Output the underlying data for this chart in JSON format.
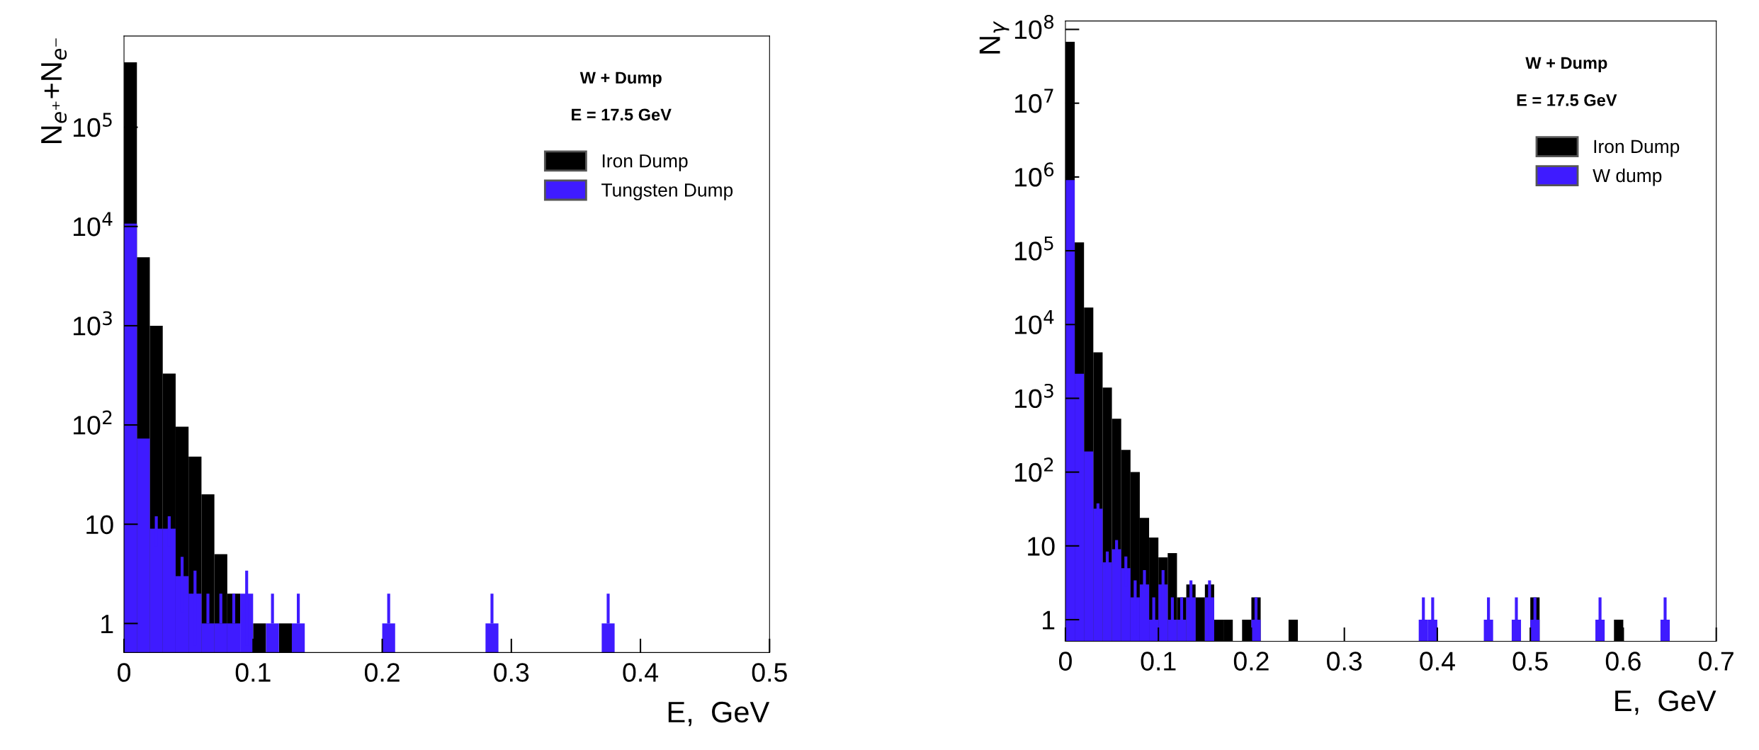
{
  "chart_data": [
    {
      "type": "histogram",
      "ylabel": "N$_{e⁺}$+N$_{e⁻}$",
      "xlabel": "E,  GeV",
      "annotations": [
        "W + Dump",
        "E = 17.5 GeV"
      ],
      "log": "y",
      "legend": "top right",
      "bins": [
        0,
        0.01,
        0.02,
        0.03,
        0.04,
        0.05,
        0.06,
        0.07,
        0.08,
        0.09,
        0.1,
        0.11,
        0.12,
        0.13,
        0.14,
        0.15,
        0.16,
        0.17,
        0.18,
        0.19,
        0.2,
        0.21,
        0.22,
        0.23,
        0.24,
        0.25,
        0.26,
        0.27,
        0.28,
        0.29,
        0.3,
        0.31,
        0.32,
        0.33,
        0.34,
        0.35,
        0.36,
        0.37,
        0.38,
        0.39,
        0.4,
        0.41,
        0.42,
        0.43,
        0.44,
        0.45,
        0.46,
        0.47,
        0.48,
        0.49,
        0.5
      ],
      "series": [
        {
          "name": "Iron Dump",
          "color": "#000000",
          "values": [
            450000,
            4900,
            1000,
            330,
            96,
            48,
            20,
            5,
            2,
            null,
            1,
            null,
            1,
            null,
            null,
            null,
            null,
            null,
            null,
            null,
            null,
            null,
            null,
            null,
            null,
            null,
            null,
            null,
            null,
            null,
            null,
            null,
            null,
            null,
            null,
            null,
            null,
            null,
            null,
            null,
            null,
            null,
            null,
            null,
            null,
            null,
            null,
            null,
            null,
            null
          ]
        },
        {
          "name": "Tungsten Dump",
          "color": "#3f1bff",
          "values": [
            10700,
            73,
            9,
            9,
            3,
            2,
            1,
            1,
            1,
            2,
            null,
            1,
            null,
            1,
            null,
            null,
            null,
            null,
            null,
            null,
            1,
            null,
            null,
            null,
            null,
            null,
            null,
            null,
            1,
            null,
            null,
            null,
            null,
            null,
            null,
            null,
            null,
            1,
            null,
            null,
            null,
            null,
            null,
            null,
            null,
            null,
            null,
            null,
            null,
            null
          ],
          "errors": [
            null,
            null,
            3,
            3,
            1.7,
            1.4,
            1,
            1,
            1,
            1.4,
            null,
            1,
            null,
            1,
            null,
            null,
            null,
            null,
            null,
            null,
            1,
            null,
            null,
            null,
            null,
            null,
            null,
            null,
            1,
            null,
            null,
            null,
            null,
            null,
            null,
            null,
            null,
            1,
            null,
            null,
            null,
            null,
            null,
            null,
            null,
            null,
            null,
            null,
            null,
            null
          ]
        }
      ],
      "xlim": [
        0,
        0.5
      ],
      "xticks": [
        0,
        0.1,
        0.2,
        0.3,
        0.4,
        0.5
      ],
      "ylim": [
        0.51,
        830000
      ],
      "yticks": [
        1,
        10,
        {
          "value": 100,
          "label": "10$^{2}$"
        },
        {
          "value": 1000,
          "label": "10$^{3}$"
        },
        {
          "value": 10000,
          "label": "10$^{4}$"
        },
        {
          "value": 100000,
          "label": "10$^{5}$"
        }
      ]
    },
    {
      "type": "histogram",
      "ylabel": "N$_{γ}$",
      "xlabel": "E,  GeV",
      "annotations": [
        "W + Dump",
        "E = 17.5 GeV"
      ],
      "log": "y",
      "legend": "top right",
      "bins": [
        0,
        0.01,
        0.02,
        0.03,
        0.04,
        0.05,
        0.06,
        0.07,
        0.08,
        0.09,
        0.1,
        0.11,
        0.12,
        0.13,
        0.14,
        0.15,
        0.16,
        0.17,
        0.18,
        0.19,
        0.2,
        0.21,
        0.22,
        0.23,
        0.24,
        0.25,
        0.26,
        0.27,
        0.28,
        0.29,
        0.3,
        0.31,
        0.32,
        0.33,
        0.34,
        0.35,
        0.36,
        0.37,
        0.38,
        0.39,
        0.4,
        0.41,
        0.42,
        0.43,
        0.44,
        0.45,
        0.46,
        0.47,
        0.48,
        0.49,
        0.5,
        0.51,
        0.52,
        0.53,
        0.54,
        0.55,
        0.56,
        0.57,
        0.58,
        0.59,
        0.6,
        0.61,
        0.62,
        0.63,
        0.64,
        0.65,
        0.66,
        0.67,
        0.68,
        0.69,
        0.7
      ],
      "series": [
        {
          "name": "Iron Dump",
          "color": "#000000",
          "values": [
            68000000,
            130000,
            17000,
            4200,
            1400,
            530,
            200,
            100,
            24,
            13,
            7,
            8,
            2,
            3,
            2,
            3,
            1,
            1,
            null,
            1,
            2,
            null,
            null,
            null,
            1,
            null,
            null,
            null,
            null,
            null,
            null,
            null,
            null,
            null,
            null,
            null,
            null,
            null,
            null,
            null,
            null,
            null,
            null,
            null,
            null,
            null,
            null,
            null,
            null,
            null,
            2,
            null,
            null,
            null,
            null,
            null,
            null,
            null,
            null,
            1,
            null,
            null,
            null,
            null,
            null,
            null,
            null,
            null,
            null,
            null
          ]
        },
        {
          "name": "W dump",
          "color": "#3f1bff",
          "values": [
            910000,
            2150,
            190,
            32,
            6,
            9,
            5,
            2,
            3,
            1,
            3,
            1,
            1,
            2,
            null,
            2,
            null,
            null,
            null,
            null,
            1,
            null,
            null,
            null,
            null,
            null,
            null,
            null,
            null,
            null,
            null,
            null,
            null,
            null,
            null,
            null,
            null,
            null,
            1,
            1,
            null,
            null,
            null,
            null,
            null,
            1,
            null,
            null,
            1,
            null,
            1,
            null,
            null,
            null,
            null,
            null,
            null,
            1,
            null,
            null,
            null,
            null,
            null,
            null,
            1,
            null,
            null,
            null,
            null,
            null
          ],
          "errors": [
            null,
            null,
            null,
            5.7,
            2.4,
            3,
            2.2,
            1.4,
            1.7,
            1,
            1.7,
            1,
            1,
            1.4,
            null,
            1.4,
            null,
            null,
            null,
            null,
            1,
            null,
            null,
            null,
            null,
            null,
            null,
            null,
            null,
            null,
            null,
            null,
            null,
            null,
            null,
            null,
            null,
            null,
            1,
            1,
            null,
            null,
            null,
            null,
            null,
            1,
            null,
            null,
            1,
            null,
            1,
            null,
            null,
            null,
            null,
            null,
            null,
            1,
            null,
            null,
            null,
            null,
            null,
            null,
            1,
            null,
            null,
            null,
            null,
            null
          ]
        }
      ],
      "xlim": [
        0,
        0.7
      ],
      "xticks": [
        0,
        0.1,
        0.2,
        0.3,
        0.4,
        0.5,
        0.6,
        0.7
      ],
      "ylim": [
        0.51,
        130000000
      ],
      "yticks": [
        1,
        10,
        {
          "value": 100,
          "label": "10$^{2}$"
        },
        {
          "value": 1000,
          "label": "10$^{3}$"
        },
        {
          "value": 10000,
          "label": "10$^{4}$"
        },
        {
          "value": 100000,
          "label": "10$^{5}$"
        },
        {
          "value": 1000000,
          "label": "10$^{6}$"
        },
        {
          "value": 10000000,
          "label": "10$^{7}$"
        },
        {
          "value": 100000000,
          "label": "10$^{8}$"
        }
      ]
    }
  ]
}
